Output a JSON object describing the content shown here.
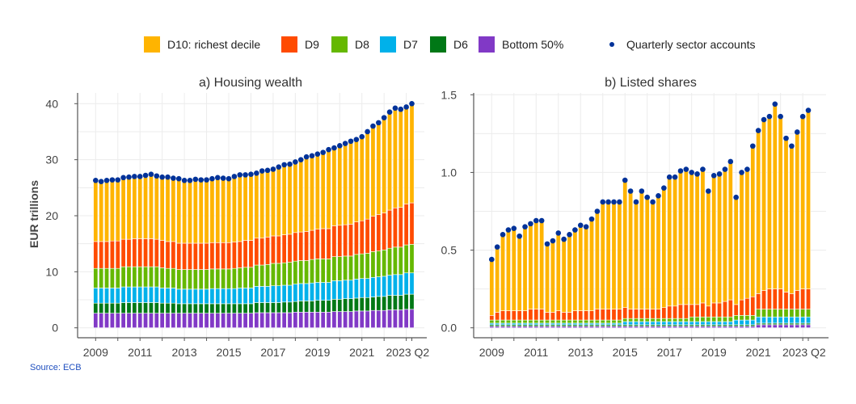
{
  "legend": {
    "items": [
      {
        "label": "D10: richest decile",
        "color": "#FFB400"
      },
      {
        "label": "D9",
        "color": "#FF4B00"
      },
      {
        "label": "D8",
        "color": "#65B800"
      },
      {
        "label": "D7",
        "color": "#00B1EA"
      },
      {
        "label": "D6",
        "color": "#007816"
      },
      {
        "label": "Bottom 50%",
        "color": "#8139C6"
      }
    ],
    "dot_label": "Quarterly sector accounts",
    "dot_color": "#003299"
  },
  "source": "Source: ECB",
  "chart_data": [
    {
      "type": "bar",
      "stacked": true,
      "title": "a) Housing wealth",
      "ylabel": "EUR trillions",
      "xlabel": "",
      "x_start": "2009 Q1",
      "x_end": "2023 Q2",
      "x_tick_labels": [
        "2009",
        "2011",
        "2013",
        "2015",
        "2017",
        "2019",
        "2021",
        "2023 Q2"
      ],
      "y_tick_labels": [
        "0",
        "10",
        "20",
        "30",
        "40"
      ],
      "ylim": [
        -2,
        42
      ],
      "grid": true,
      "legend_position": "top",
      "series": [
        {
          "name": "Bottom 50%",
          "values": [
            2.6,
            2.6,
            2.6,
            2.6,
            2.6,
            2.6,
            2.6,
            2.6,
            2.6,
            2.6,
            2.6,
            2.6,
            2.6,
            2.6,
            2.6,
            2.6,
            2.6,
            2.6,
            2.6,
            2.6,
            2.6,
            2.6,
            2.6,
            2.6,
            2.6,
            2.6,
            2.6,
            2.6,
            2.6,
            2.7,
            2.7,
            2.7,
            2.7,
            2.7,
            2.7,
            2.7,
            2.8,
            2.8,
            2.8,
            2.8,
            2.8,
            2.8,
            2.8,
            2.9,
            2.9,
            2.9,
            2.9,
            3.0,
            3.0,
            3.0,
            3.1,
            3.1,
            3.1,
            3.2,
            3.2,
            3.2,
            3.3,
            3.3
          ]
        },
        {
          "name": "D6",
          "values": [
            1.8,
            1.8,
            1.8,
            1.8,
            1.8,
            1.9,
            1.9,
            1.9,
            1.9,
            1.9,
            1.9,
            1.9,
            1.8,
            1.8,
            1.8,
            1.7,
            1.7,
            1.7,
            1.7,
            1.7,
            1.7,
            1.7,
            1.7,
            1.7,
            1.7,
            1.7,
            1.7,
            1.7,
            1.7,
            1.8,
            1.8,
            1.8,
            1.8,
            1.8,
            1.9,
            1.9,
            1.9,
            2.0,
            2.0,
            2.0,
            2.1,
            2.1,
            2.1,
            2.2,
            2.2,
            2.3,
            2.3,
            2.3,
            2.4,
            2.4,
            2.4,
            2.5,
            2.5,
            2.6,
            2.6,
            2.6,
            2.7,
            2.7
          ]
        },
        {
          "name": "D7",
          "values": [
            2.7,
            2.7,
            2.7,
            2.7,
            2.7,
            2.8,
            2.8,
            2.8,
            2.8,
            2.8,
            2.8,
            2.8,
            2.7,
            2.7,
            2.7,
            2.6,
            2.6,
            2.6,
            2.6,
            2.6,
            2.6,
            2.7,
            2.7,
            2.7,
            2.7,
            2.7,
            2.8,
            2.8,
            2.8,
            2.9,
            2.9,
            2.9,
            3.0,
            3.0,
            3.0,
            3.0,
            3.1,
            3.1,
            3.1,
            3.2,
            3.2,
            3.2,
            3.2,
            3.3,
            3.3,
            3.3,
            3.3,
            3.4,
            3.4,
            3.4,
            3.5,
            3.5,
            3.6,
            3.6,
            3.7,
            3.7,
            3.8,
            3.8
          ]
        },
        {
          "name": "D8",
          "values": [
            3.5,
            3.5,
            3.5,
            3.5,
            3.5,
            3.6,
            3.6,
            3.6,
            3.6,
            3.6,
            3.6,
            3.6,
            3.6,
            3.5,
            3.5,
            3.5,
            3.5,
            3.5,
            3.5,
            3.5,
            3.5,
            3.5,
            3.5,
            3.5,
            3.5,
            3.6,
            3.6,
            3.7,
            3.7,
            3.8,
            3.8,
            3.9,
            4.0,
            4.0,
            4.0,
            4.1,
            4.1,
            4.1,
            4.1,
            4.2,
            4.2,
            4.2,
            4.2,
            4.3,
            4.3,
            4.3,
            4.3,
            4.4,
            4.4,
            4.5,
            4.6,
            4.6,
            4.7,
            4.8,
            4.9,
            4.9,
            5.0,
            5.1
          ]
        },
        {
          "name": "D9",
          "values": [
            4.8,
            4.8,
            4.8,
            4.9,
            4.9,
            4.9,
            4.9,
            5.0,
            5.0,
            5.0,
            5.0,
            4.9,
            4.9,
            4.8,
            4.8,
            4.7,
            4.7,
            4.7,
            4.7,
            4.7,
            4.7,
            4.7,
            4.7,
            4.7,
            4.7,
            4.7,
            4.7,
            4.8,
            4.8,
            4.8,
            4.8,
            4.9,
            4.9,
            4.9,
            5.0,
            5.0,
            5.1,
            5.1,
            5.2,
            5.2,
            5.3,
            5.4,
            5.4,
            5.5,
            5.6,
            5.6,
            5.7,
            5.8,
            5.9,
            6.1,
            6.3,
            6.5,
            6.6,
            6.8,
            7.0,
            7.1,
            7.3,
            7.4
          ]
        },
        {
          "name": "D10: richest decile",
          "values": [
            10.9,
            10.7,
            10.9,
            10.9,
            10.9,
            11.0,
            11.1,
            11.1,
            11.1,
            11.3,
            11.5,
            11.3,
            11.3,
            11.5,
            11.3,
            11.5,
            11.2,
            11.2,
            11.4,
            11.3,
            11.3,
            11.4,
            11.6,
            11.5,
            11.4,
            11.7,
            11.9,
            11.7,
            11.8,
            11.6,
            12.0,
            11.9,
            11.9,
            12.3,
            12.5,
            12.5,
            12.6,
            12.9,
            13.3,
            13.3,
            13.4,
            13.6,
            14.1,
            13.9,
            14.2,
            14.5,
            14.8,
            14.7,
            15.0,
            15.6,
            16.1,
            16.4,
            17.0,
            17.5,
            17.8,
            17.5,
            17.3,
            17.7
          ]
        }
      ],
      "dots": {
        "name": "Quarterly sector accounts",
        "values": [
          26.3,
          26.1,
          26.3,
          26.4,
          26.4,
          26.8,
          26.9,
          27.0,
          27.0,
          27.2,
          27.4,
          27.1,
          26.9,
          26.9,
          26.7,
          26.6,
          26.3,
          26.3,
          26.5,
          26.4,
          26.4,
          26.6,
          26.8,
          26.7,
          26.6,
          27.0,
          27.3,
          27.3,
          27.4,
          27.6,
          28.0,
          28.1,
          28.3,
          28.7,
          29.1,
          29.2,
          29.6,
          30.0,
          30.5,
          30.7,
          31.0,
          31.3,
          31.8,
          32.1,
          32.5,
          32.9,
          33.3,
          33.6,
          34.1,
          35.0,
          36.0,
          36.6,
          37.5,
          38.5,
          39.2,
          39.0,
          39.4,
          40.0
        ]
      }
    },
    {
      "type": "bar",
      "stacked": true,
      "title": "b) Listed shares",
      "ylabel": "",
      "xlabel": "",
      "x_start": "2009 Q1",
      "x_end": "2023 Q2",
      "x_tick_labels": [
        "2009",
        "2011",
        "2013",
        "2015",
        "2017",
        "2019",
        "2021",
        "2023 Q2"
      ],
      "y_tick_labels": [
        "0.0",
        "0.5",
        "1.0",
        "1.5"
      ],
      "ylim": [
        -0.07,
        1.53
      ],
      "grid": true,
      "series": [
        {
          "name": "Bottom 50%",
          "values": [
            0.01,
            0.01,
            0.01,
            0.01,
            0.01,
            0.01,
            0.01,
            0.01,
            0.01,
            0.01,
            0.01,
            0.01,
            0.01,
            0.01,
            0.01,
            0.01,
            0.01,
            0.01,
            0.01,
            0.01,
            0.01,
            0.01,
            0.01,
            0.01,
            0.01,
            0.01,
            0.01,
            0.01,
            0.01,
            0.01,
            0.01,
            0.01,
            0.01,
            0.01,
            0.01,
            0.01,
            0.01,
            0.01,
            0.01,
            0.01,
            0.01,
            0.01,
            0.01,
            0.01,
            0.01,
            0.01,
            0.01,
            0.01,
            0.02,
            0.02,
            0.02,
            0.02,
            0.02,
            0.02,
            0.02,
            0.02,
            0.02,
            0.02
          ]
        },
        {
          "name": "D6",
          "values": [
            0.01,
            0.01,
            0.01,
            0.01,
            0.01,
            0.01,
            0.01,
            0.01,
            0.01,
            0.01,
            0.01,
            0.01,
            0.01,
            0.01,
            0.01,
            0.01,
            0.01,
            0.01,
            0.01,
            0.01,
            0.01,
            0.01,
            0.01,
            0.01,
            0.01,
            0.01,
            0.01,
            0.01,
            0.01,
            0.01,
            0.01,
            0.01,
            0.01,
            0.01,
            0.01,
            0.01,
            0.01,
            0.01,
            0.01,
            0.01,
            0.01,
            0.01,
            0.01,
            0.01,
            0.01,
            0.01,
            0.01,
            0.01,
            0.01,
            0.01,
            0.01,
            0.01,
            0.01,
            0.01,
            0.01,
            0.01,
            0.01,
            0.01
          ]
        },
        {
          "name": "D7",
          "values": [
            0.01,
            0.01,
            0.01,
            0.01,
            0.01,
            0.01,
            0.01,
            0.01,
            0.01,
            0.01,
            0.01,
            0.01,
            0.01,
            0.01,
            0.01,
            0.01,
            0.01,
            0.01,
            0.01,
            0.01,
            0.01,
            0.01,
            0.01,
            0.01,
            0.02,
            0.02,
            0.02,
            0.02,
            0.02,
            0.02,
            0.02,
            0.02,
            0.02,
            0.02,
            0.02,
            0.02,
            0.02,
            0.02,
            0.02,
            0.02,
            0.02,
            0.02,
            0.02,
            0.02,
            0.03,
            0.03,
            0.03,
            0.03,
            0.04,
            0.04,
            0.04,
            0.04,
            0.04,
            0.04,
            0.04,
            0.04,
            0.04,
            0.04
          ]
        },
        {
          "name": "D8",
          "values": [
            0.02,
            0.02,
            0.02,
            0.02,
            0.02,
            0.02,
            0.02,
            0.02,
            0.02,
            0.02,
            0.02,
            0.02,
            0.02,
            0.02,
            0.02,
            0.02,
            0.02,
            0.02,
            0.02,
            0.02,
            0.02,
            0.02,
            0.02,
            0.02,
            0.02,
            0.02,
            0.02,
            0.02,
            0.02,
            0.02,
            0.02,
            0.02,
            0.02,
            0.02,
            0.02,
            0.02,
            0.03,
            0.03,
            0.03,
            0.03,
            0.03,
            0.03,
            0.03,
            0.03,
            0.03,
            0.03,
            0.03,
            0.03,
            0.05,
            0.05,
            0.05,
            0.05,
            0.05,
            0.05,
            0.05,
            0.05,
            0.05,
            0.05
          ]
        },
        {
          "name": "D9",
          "values": [
            0.03,
            0.05,
            0.06,
            0.06,
            0.06,
            0.06,
            0.06,
            0.07,
            0.07,
            0.07,
            0.05,
            0.05,
            0.06,
            0.05,
            0.05,
            0.06,
            0.06,
            0.06,
            0.06,
            0.07,
            0.07,
            0.07,
            0.07,
            0.07,
            0.07,
            0.06,
            0.06,
            0.06,
            0.06,
            0.06,
            0.06,
            0.07,
            0.08,
            0.08,
            0.09,
            0.09,
            0.08,
            0.08,
            0.09,
            0.07,
            0.09,
            0.09,
            0.1,
            0.11,
            0.07,
            0.1,
            0.11,
            0.12,
            0.1,
            0.12,
            0.13,
            0.13,
            0.13,
            0.11,
            0.1,
            0.12,
            0.13,
            0.13
          ]
        },
        {
          "name": "D10: richest decile",
          "values": [
            0.36,
            0.42,
            0.49,
            0.52,
            0.53,
            0.48,
            0.54,
            0.55,
            0.57,
            0.57,
            0.44,
            0.46,
            0.5,
            0.47,
            0.5,
            0.52,
            0.55,
            0.54,
            0.59,
            0.63,
            0.69,
            0.69,
            0.69,
            0.69,
            0.82,
            0.76,
            0.69,
            0.76,
            0.72,
            0.69,
            0.73,
            0.77,
            0.83,
            0.83,
            0.86,
            0.87,
            0.85,
            0.84,
            0.86,
            0.74,
            0.82,
            0.83,
            0.85,
            0.89,
            0.69,
            0.82,
            0.83,
            0.97,
            1.05,
            1.1,
            1.11,
            1.19,
            1.11,
            0.99,
            0.95,
            1.02,
            1.11,
            1.15
          ]
        }
      ],
      "dots": {
        "name": "Quarterly sector accounts",
        "values": [
          0.44,
          0.52,
          0.6,
          0.63,
          0.64,
          0.59,
          0.65,
          0.67,
          0.69,
          0.69,
          0.54,
          0.56,
          0.61,
          0.57,
          0.6,
          0.63,
          0.66,
          0.65,
          0.7,
          0.75,
          0.81,
          0.81,
          0.81,
          0.81,
          0.95,
          0.88,
          0.81,
          0.88,
          0.84,
          0.81,
          0.85,
          0.9,
          0.97,
          0.97,
          1.01,
          1.02,
          1.0,
          0.99,
          1.02,
          0.88,
          0.98,
          0.99,
          1.02,
          1.07,
          0.84,
          1.0,
          1.02,
          1.17,
          1.27,
          1.34,
          1.36,
          1.44,
          1.36,
          1.22,
          1.17,
          1.26,
          1.36,
          1.4
        ]
      }
    }
  ]
}
